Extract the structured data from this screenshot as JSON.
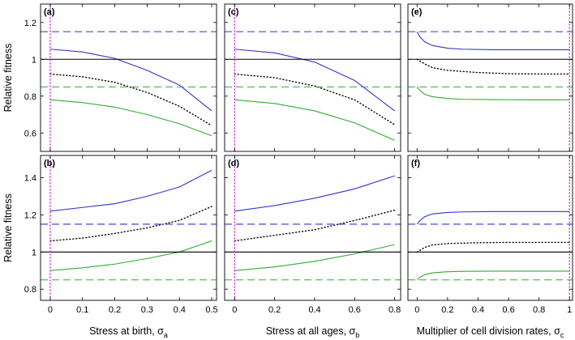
{
  "colors": {
    "blue": "#3333cc",
    "green": "#33aa33",
    "black": "#000000",
    "magenta": "#cc33cc",
    "frame": "#000000"
  },
  "chart_data": [
    {
      "type": "line",
      "panel_label": "(a)",
      "ylabel": "Relative fitness",
      "xlabel": "",
      "xlim": [
        -0.03,
        0.515
      ],
      "ylim": [
        0.5,
        1.3
      ],
      "xticks": [
        0,
        0.1,
        0.2,
        0.3,
        0.4,
        0.5
      ],
      "xtick_labels": [
        "",
        "",
        "",
        "",
        "",
        ""
      ],
      "yticks": [
        0.6,
        0.8,
        1.0,
        1.2
      ],
      "ytick_labels": [
        "0.6",
        "0.8",
        "1",
        "1.2"
      ],
      "series": [
        {
          "color": "blue",
          "style": "solid",
          "x": [
            0,
            0.1,
            0.2,
            0.3,
            0.4,
            0.5
          ],
          "y": [
            1.055,
            1.04,
            1.005,
            0.94,
            0.86,
            0.72
          ]
        },
        {
          "color": "black",
          "style": "dotted",
          "x": [
            0,
            0.1,
            0.2,
            0.3,
            0.4,
            0.5
          ],
          "y": [
            0.92,
            0.905,
            0.875,
            0.82,
            0.745,
            0.64
          ]
        },
        {
          "color": "green",
          "style": "solid",
          "x": [
            0,
            0.1,
            0.2,
            0.3,
            0.4,
            0.5
          ],
          "y": [
            0.78,
            0.765,
            0.74,
            0.7,
            0.65,
            0.585
          ]
        },
        {
          "color": "blue",
          "style": "dashed",
          "x": [
            -0.03,
            0.515
          ],
          "y": [
            1.15,
            1.15
          ]
        },
        {
          "color": "black",
          "style": "solid",
          "x": [
            -0.03,
            0.515
          ],
          "y": [
            1.0,
            1.0
          ]
        },
        {
          "color": "green",
          "style": "dashed",
          "x": [
            -0.03,
            0.515
          ],
          "y": [
            0.85,
            0.85
          ]
        },
        {
          "color": "magenta",
          "style": "dotted",
          "x": [
            0,
            0
          ],
          "y": [
            0.5,
            1.3
          ]
        }
      ]
    },
    {
      "type": "line",
      "panel_label": "(c)",
      "ylabel": "",
      "xlabel": "",
      "xlim": [
        -0.05,
        0.83
      ],
      "ylim": [
        0.5,
        1.3
      ],
      "xticks": [
        0,
        0.2,
        0.4,
        0.6,
        0.8
      ],
      "xtick_labels": [
        "",
        "",
        "",
        "",
        ""
      ],
      "yticks": [
        0.6,
        0.8,
        1.0,
        1.2
      ],
      "ytick_labels": [
        "",
        "",
        "",
        ""
      ],
      "series": [
        {
          "color": "blue",
          "style": "solid",
          "x": [
            0,
            0.2,
            0.4,
            0.6,
            0.8
          ],
          "y": [
            1.055,
            1.035,
            0.985,
            0.885,
            0.72
          ]
        },
        {
          "color": "black",
          "style": "dotted",
          "x": [
            0,
            0.2,
            0.4,
            0.6,
            0.8
          ],
          "y": [
            0.92,
            0.9,
            0.855,
            0.78,
            0.645
          ]
        },
        {
          "color": "green",
          "style": "solid",
          "x": [
            0,
            0.2,
            0.4,
            0.6,
            0.8
          ],
          "y": [
            0.78,
            0.76,
            0.72,
            0.655,
            0.56
          ]
        },
        {
          "color": "blue",
          "style": "dashed",
          "x": [
            -0.05,
            0.83
          ],
          "y": [
            1.15,
            1.15
          ]
        },
        {
          "color": "black",
          "style": "solid",
          "x": [
            -0.05,
            0.83
          ],
          "y": [
            1.0,
            1.0
          ]
        },
        {
          "color": "green",
          "style": "dashed",
          "x": [
            -0.05,
            0.83
          ],
          "y": [
            0.85,
            0.85
          ]
        },
        {
          "color": "magenta",
          "style": "dotted",
          "x": [
            0,
            0
          ],
          "y": [
            0.5,
            1.3
          ]
        }
      ]
    },
    {
      "type": "line",
      "panel_label": "(e)",
      "ylabel": "",
      "xlabel": "",
      "xlim": [
        -0.06,
        1.02
      ],
      "ylim": [
        0.5,
        1.3
      ],
      "xticks": [
        0,
        0.2,
        0.4,
        0.6,
        0.8,
        1.0
      ],
      "xtick_labels": [
        "",
        "",
        "",
        "",
        "",
        ""
      ],
      "yticks": [
        0.6,
        0.8,
        1.0,
        1.2
      ],
      "ytick_labels": [
        "",
        "",
        "",
        ""
      ],
      "series": [
        {
          "color": "blue",
          "style": "solid",
          "x": [
            0,
            0.02,
            0.05,
            0.1,
            0.2,
            0.3,
            0.5,
            0.7,
            1.0
          ],
          "y": [
            1.15,
            1.12,
            1.095,
            1.075,
            1.06,
            1.055,
            1.052,
            1.052,
            1.052
          ]
        },
        {
          "color": "black",
          "style": "dotted",
          "x": [
            0,
            0.05,
            0.1,
            0.2,
            0.4,
            0.6,
            0.8,
            1.0
          ],
          "y": [
            1.0,
            0.975,
            0.955,
            0.94,
            0.928,
            0.922,
            0.92,
            0.92
          ]
        },
        {
          "color": "green",
          "style": "solid",
          "x": [
            0,
            0.02,
            0.05,
            0.1,
            0.2,
            0.3,
            0.5,
            0.7,
            1.0
          ],
          "y": [
            0.85,
            0.83,
            0.81,
            0.797,
            0.787,
            0.783,
            0.781,
            0.78,
            0.78
          ]
        },
        {
          "color": "blue",
          "style": "dashed",
          "x": [
            -0.06,
            1.02
          ],
          "y": [
            1.15,
            1.15
          ]
        },
        {
          "color": "black",
          "style": "solid",
          "x": [
            -0.06,
            1.02
          ],
          "y": [
            1.0,
            1.0
          ]
        },
        {
          "color": "green",
          "style": "dashed",
          "x": [
            -0.06,
            1.02
          ],
          "y": [
            0.85,
            0.85
          ]
        },
        {
          "color": "magenta",
          "style": "dotted",
          "x": [
            1,
            1
          ],
          "y": [
            0.5,
            1.3
          ]
        }
      ]
    },
    {
      "type": "line",
      "panel_label": "(b)",
      "ylabel": "Relative fitness",
      "xlabel": "Stress at birth, σ",
      "xlabel_sub": "a",
      "xlim": [
        -0.03,
        0.515
      ],
      "ylim": [
        0.74,
        1.52
      ],
      "xticks": [
        0,
        0.1,
        0.2,
        0.3,
        0.4,
        0.5
      ],
      "xtick_labels": [
        "0",
        "0.1",
        "0.2",
        "0.3",
        "0.4",
        "0.5"
      ],
      "yticks": [
        0.8,
        1.0,
        1.2,
        1.4
      ],
      "ytick_labels": [
        "0.8",
        "1",
        "1.2",
        "1.4"
      ],
      "series": [
        {
          "color": "blue",
          "style": "solid",
          "x": [
            0,
            0.1,
            0.2,
            0.3,
            0.4,
            0.5
          ],
          "y": [
            1.22,
            1.24,
            1.26,
            1.3,
            1.35,
            1.44
          ]
        },
        {
          "color": "black",
          "style": "dotted",
          "x": [
            0,
            0.1,
            0.2,
            0.3,
            0.4,
            0.5
          ],
          "y": [
            1.06,
            1.075,
            1.1,
            1.13,
            1.17,
            1.245
          ]
        },
        {
          "color": "green",
          "style": "solid",
          "x": [
            0,
            0.1,
            0.2,
            0.3,
            0.4,
            0.5
          ],
          "y": [
            0.9,
            0.915,
            0.935,
            0.965,
            1.0,
            1.06
          ]
        },
        {
          "color": "blue",
          "style": "dashed",
          "x": [
            -0.03,
            0.515
          ],
          "y": [
            1.15,
            1.15
          ]
        },
        {
          "color": "black",
          "style": "solid",
          "x": [
            -0.03,
            0.515
          ],
          "y": [
            1.0,
            1.0
          ]
        },
        {
          "color": "green",
          "style": "dashed",
          "x": [
            -0.03,
            0.515
          ],
          "y": [
            0.85,
            0.85
          ]
        },
        {
          "color": "magenta",
          "style": "dotted",
          "x": [
            0,
            0
          ],
          "y": [
            0.74,
            1.52
          ]
        }
      ]
    },
    {
      "type": "line",
      "panel_label": "(d)",
      "ylabel": "",
      "xlabel": "Stress at all ages, σ",
      "xlabel_sub": "b",
      "xlim": [
        -0.05,
        0.83
      ],
      "ylim": [
        0.74,
        1.52
      ],
      "xticks": [
        0,
        0.2,
        0.4,
        0.6,
        0.8
      ],
      "xtick_labels": [
        "0",
        "0.2",
        "0.4",
        "0.6",
        "0.8"
      ],
      "yticks": [
        0.8,
        1.0,
        1.2,
        1.4
      ],
      "ytick_labels": [
        "",
        "",
        "",
        ""
      ],
      "series": [
        {
          "color": "blue",
          "style": "solid",
          "x": [
            0,
            0.2,
            0.4,
            0.6,
            0.8
          ],
          "y": [
            1.22,
            1.25,
            1.29,
            1.34,
            1.41
          ]
        },
        {
          "color": "black",
          "style": "dotted",
          "x": [
            0,
            0.2,
            0.4,
            0.6,
            0.8
          ],
          "y": [
            1.06,
            1.09,
            1.12,
            1.17,
            1.225
          ]
        },
        {
          "color": "green",
          "style": "solid",
          "x": [
            0,
            0.2,
            0.4,
            0.6,
            0.8
          ],
          "y": [
            0.9,
            0.92,
            0.95,
            0.99,
            1.04
          ]
        },
        {
          "color": "blue",
          "style": "dashed",
          "x": [
            -0.05,
            0.83
          ],
          "y": [
            1.15,
            1.15
          ]
        },
        {
          "color": "black",
          "style": "solid",
          "x": [
            -0.05,
            0.83
          ],
          "y": [
            1.0,
            1.0
          ]
        },
        {
          "color": "green",
          "style": "dashed",
          "x": [
            -0.05,
            0.83
          ],
          "y": [
            0.85,
            0.85
          ]
        },
        {
          "color": "magenta",
          "style": "dotted",
          "x": [
            0,
            0
          ],
          "y": [
            0.74,
            1.52
          ]
        }
      ]
    },
    {
      "type": "line",
      "panel_label": "(f)",
      "ylabel": "",
      "xlabel": "Multiplier of cell division rates, σ",
      "xlabel_sub": "c",
      "xlim": [
        -0.06,
        1.02
      ],
      "ylim": [
        0.74,
        1.52
      ],
      "xticks": [
        0,
        0.2,
        0.4,
        0.6,
        0.8,
        1.0
      ],
      "xtick_labels": [
        "0",
        "0.2",
        "0.4",
        "0.6",
        "0.8",
        "1"
      ],
      "yticks": [
        0.8,
        1.0,
        1.2,
        1.4
      ],
      "ytick_labels": [
        "",
        "",
        "",
        ""
      ],
      "series": [
        {
          "color": "blue",
          "style": "solid",
          "x": [
            0,
            0.02,
            0.05,
            0.1,
            0.2,
            0.3,
            0.5,
            0.7,
            1.0
          ],
          "y": [
            1.15,
            1.17,
            1.19,
            1.205,
            1.213,
            1.216,
            1.218,
            1.218,
            1.218
          ]
        },
        {
          "color": "black",
          "style": "dotted",
          "x": [
            0,
            0.05,
            0.1,
            0.2,
            0.4,
            0.6,
            0.8,
            1.0
          ],
          "y": [
            1.0,
            1.025,
            1.038,
            1.046,
            1.05,
            1.052,
            1.052,
            1.052
          ]
        },
        {
          "color": "green",
          "style": "solid",
          "x": [
            0,
            0.02,
            0.05,
            0.1,
            0.2,
            0.3,
            0.5,
            0.7,
            1.0
          ],
          "y": [
            0.85,
            0.865,
            0.878,
            0.888,
            0.894,
            0.896,
            0.897,
            0.897,
            0.897
          ]
        },
        {
          "color": "blue",
          "style": "dashed",
          "x": [
            -0.06,
            1.02
          ],
          "y": [
            1.15,
            1.15
          ]
        },
        {
          "color": "black",
          "style": "solid",
          "x": [
            -0.06,
            1.02
          ],
          "y": [
            1.0,
            1.0
          ]
        },
        {
          "color": "green",
          "style": "dashed",
          "x": [
            -0.06,
            1.02
          ],
          "y": [
            0.85,
            0.85
          ]
        },
        {
          "color": "magenta",
          "style": "dotted",
          "x": [
            1,
            1
          ],
          "y": [
            0.74,
            1.52
          ]
        }
      ]
    }
  ]
}
